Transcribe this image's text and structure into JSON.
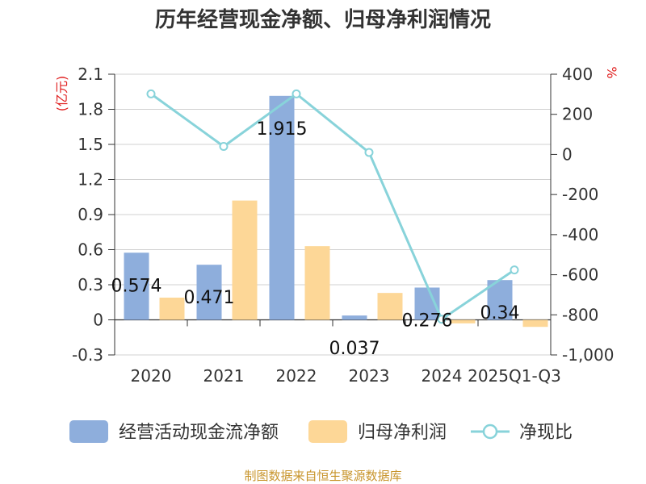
{
  "chart_data": {
    "type": "bar",
    "title": "历年经营现金净额、归母净利润情况",
    "left_unit": "(亿元)",
    "right_unit": "%",
    "categories": [
      "2020",
      "2021",
      "2022",
      "2023",
      "2024",
      "2025Q1-Q3"
    ],
    "series": [
      {
        "name": "经营活动现金流净额",
        "type": "bar",
        "axis": "left",
        "color": "#8eaedc",
        "values": [
          0.574,
          0.471,
          1.915,
          0.037,
          0.276,
          0.34
        ],
        "labels": [
          "0.574",
          "0.471",
          "1.915",
          "0.037",
          "0.276",
          "0.34"
        ]
      },
      {
        "name": "归母净利润",
        "type": "bar",
        "axis": "left",
        "color": "#fdd797",
        "values": [
          0.19,
          1.02,
          0.63,
          0.23,
          -0.03,
          -0.06
        ]
      },
      {
        "name": "净现比",
        "type": "line",
        "axis": "right",
        "color": "#88d3da",
        "values": [
          302,
          40,
          302,
          10,
          -822,
          -576
        ]
      }
    ],
    "left_axis": {
      "min": -0.3,
      "max": 2.1,
      "ticks": [
        -0.3,
        0,
        0.3,
        0.6,
        0.9,
        1.2,
        1.5,
        1.8,
        2.1
      ],
      "tick_labels": [
        "-0.3",
        "0",
        "0.3",
        "0.6",
        "0.9",
        "1.2",
        "1.5",
        "1.8",
        "2.1"
      ]
    },
    "right_axis": {
      "min": -1000,
      "max": 400,
      "ticks": [
        -1000,
        -800,
        -600,
        -400,
        -200,
        0,
        200,
        400
      ],
      "tick_labels": [
        "-1,000",
        "-800",
        "-600",
        "-400",
        "-200",
        "0",
        "200",
        "400"
      ]
    },
    "grid": true,
    "legend_position": "bottom"
  },
  "source_text": "制图数据来自恒生聚源数据库"
}
